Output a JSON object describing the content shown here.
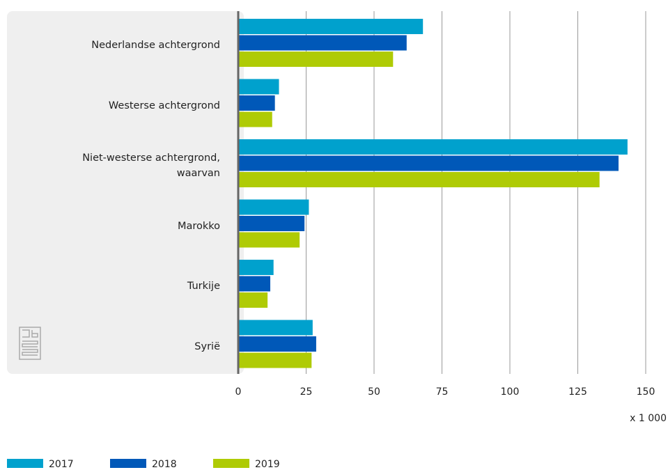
{
  "chart_data": {
    "type": "bar",
    "orientation": "horizontal",
    "categories": [
      "Nederlandse achtergrond",
      "Westerse achtergrond",
      "Niet-westerse achtergrond, waarvan",
      "Marokko",
      "Turkije",
      "Syrië"
    ],
    "series": [
      {
        "name": "2017",
        "color": "#00a1cd",
        "values": [
          68,
          15,
          143.3,
          26,
          13,
          27.4
        ]
      },
      {
        "name": "2018",
        "color": "#0058b8",
        "values": [
          62,
          13.5,
          140,
          24.4,
          11.8,
          28.7
        ]
      },
      {
        "name": "2019",
        "color": "#afcb05",
        "values": [
          57,
          12.5,
          133,
          22.6,
          10.8,
          27
        ]
      }
    ],
    "xlim": [
      0,
      150
    ],
    "xticks": [
      0,
      25,
      50,
      75,
      100,
      125,
      150
    ],
    "x_unit_label": "x 1 000",
    "grid": true,
    "legend": "bottom-left"
  }
}
